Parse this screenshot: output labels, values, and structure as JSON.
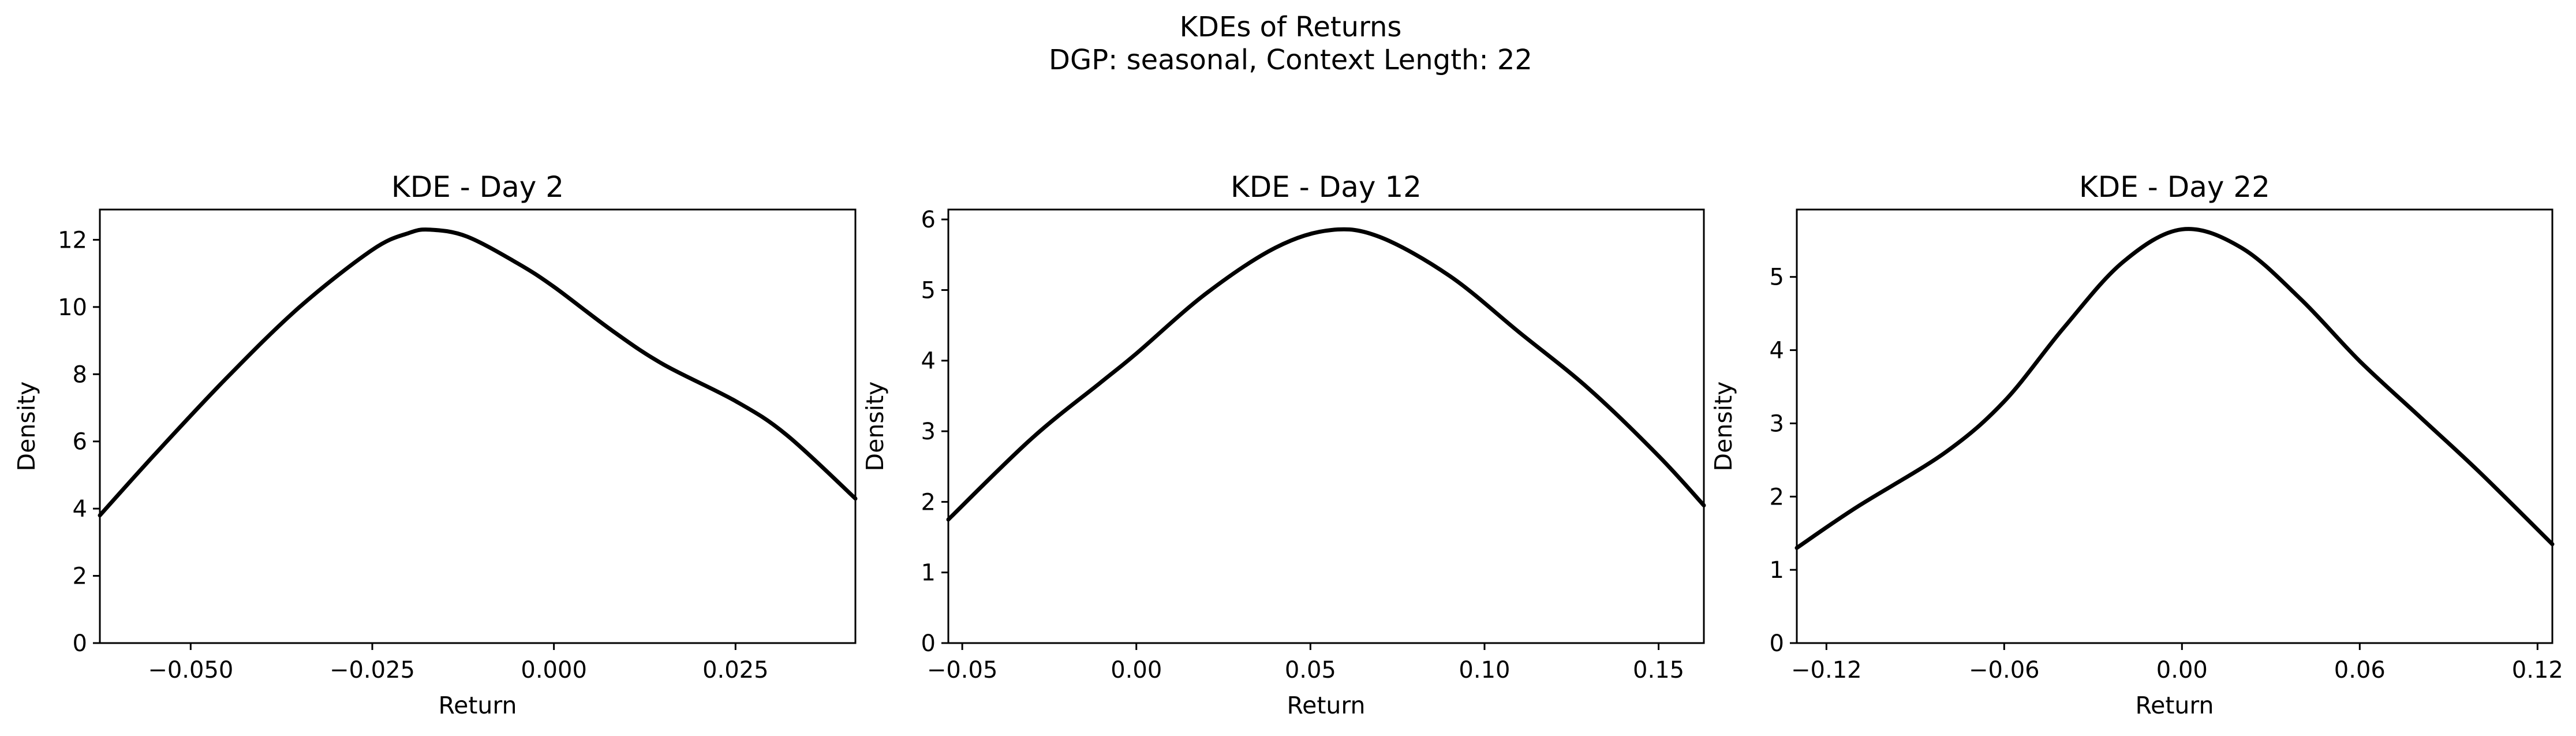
{
  "figure": {
    "title_line1": "KDEs of Returns",
    "title_line2": "DGP: seasonal, Context Length: 22"
  },
  "chart_data": [
    {
      "type": "line",
      "title": "KDE - Day 2",
      "xlabel": "Return",
      "ylabel": "Density",
      "xlim": [
        -0.0625,
        0.0415
      ],
      "ylim": [
        0,
        12.9
      ],
      "xticks": [
        -0.05,
        -0.025,
        0.0,
        0.025
      ],
      "xtick_labels": [
        "−0.050",
        "−0.025",
        "0.000",
        "0.025"
      ],
      "yticks": [
        0,
        2,
        4,
        6,
        8,
        10,
        12
      ],
      "ytick_labels": [
        "0",
        "2",
        "4",
        "6",
        "8",
        "10",
        "12"
      ],
      "grid": false,
      "series": [
        {
          "color": "#000000",
          "x": [
            -0.0625,
            -0.055,
            -0.045,
            -0.035,
            -0.025,
            -0.02,
            -0.017,
            -0.012,
            -0.005,
            0.0,
            0.008,
            0.015,
            0.025,
            0.032,
            0.0415
          ],
          "y": [
            3.8,
            5.6,
            7.9,
            10.0,
            11.7,
            12.2,
            12.3,
            12.1,
            11.3,
            10.6,
            9.3,
            8.3,
            7.2,
            6.2,
            4.3
          ]
        }
      ]
    },
    {
      "type": "line",
      "title": "KDE - Day 12",
      "xlabel": "Return",
      "ylabel": "Density",
      "xlim": [
        -0.054,
        0.163
      ],
      "ylim": [
        0,
        6.14
      ],
      "xticks": [
        -0.05,
        0.0,
        0.05,
        0.1,
        0.15
      ],
      "xtick_labels": [
        "−0.05",
        "0.00",
        "0.05",
        "0.10",
        "0.15"
      ],
      "yticks": [
        0,
        1,
        2,
        3,
        4,
        5,
        6
      ],
      "ytick_labels": [
        "0",
        "1",
        "2",
        "3",
        "4",
        "5",
        "6"
      ],
      "grid": false,
      "series": [
        {
          "color": "#000000",
          "x": [
            -0.054,
            -0.03,
            -0.01,
            0.0,
            0.02,
            0.04,
            0.056,
            0.07,
            0.09,
            0.11,
            0.13,
            0.15,
            0.163
          ],
          "y": [
            1.75,
            2.9,
            3.7,
            4.1,
            4.95,
            5.6,
            5.85,
            5.75,
            5.2,
            4.4,
            3.6,
            2.65,
            1.95
          ]
        }
      ]
    },
    {
      "type": "line",
      "title": "KDE - Day 22",
      "xlabel": "Return",
      "ylabel": "Density",
      "xlim": [
        -0.13,
        0.125
      ],
      "ylim": [
        0,
        5.92
      ],
      "xticks": [
        -0.12,
        -0.06,
        0.0,
        0.06,
        0.12
      ],
      "xtick_labels": [
        "−0.12",
        "−0.06",
        "0.00",
        "0.06",
        "0.12"
      ],
      "yticks": [
        0,
        1,
        2,
        3,
        4,
        5
      ],
      "ytick_labels": [
        "0",
        "1",
        "2",
        "3",
        "4",
        "5"
      ],
      "grid": false,
      "series": [
        {
          "color": "#000000",
          "x": [
            -0.13,
            -0.11,
            -0.08,
            -0.06,
            -0.04,
            -0.02,
            0.0,
            0.02,
            0.04,
            0.06,
            0.08,
            0.1,
            0.125
          ],
          "y": [
            1.3,
            1.85,
            2.6,
            3.3,
            4.3,
            5.2,
            5.65,
            5.4,
            4.7,
            3.85,
            3.1,
            2.35,
            1.35
          ]
        }
      ]
    }
  ]
}
